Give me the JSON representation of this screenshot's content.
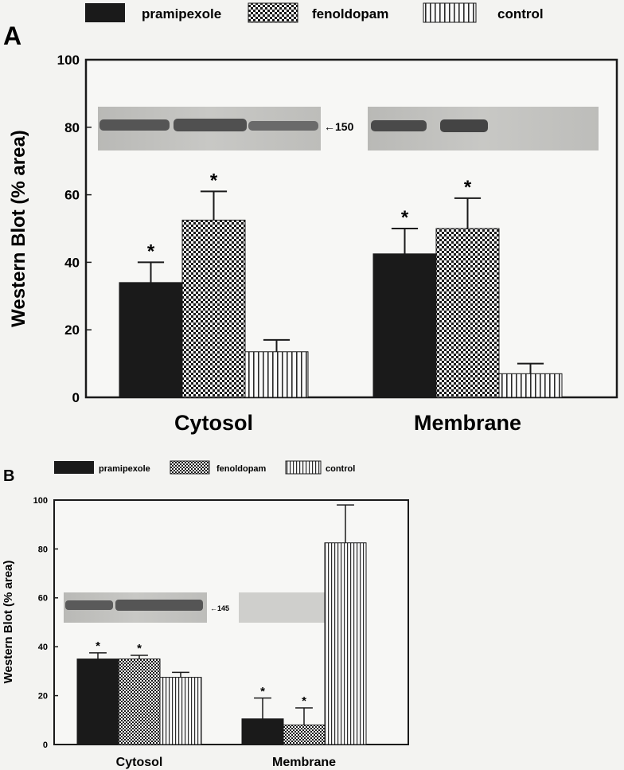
{
  "legend": [
    {
      "label": "pramipexole",
      "pattern": "solid"
    },
    {
      "label": "fenoldopam",
      "pattern": "check"
    },
    {
      "label": "control",
      "pattern": "vstripe"
    }
  ],
  "colors": {
    "bar_dark": "#1a1a1a",
    "background": "#f3f3f1",
    "ink": "#161616"
  },
  "chart_data": [
    {
      "type": "bar",
      "panel_label": "A",
      "ylabel": "Western Blot (% area)",
      "ylim": [
        0,
        100
      ],
      "yticks": [
        0,
        20,
        40,
        60,
        80,
        100
      ],
      "categories": [
        "Cytosol",
        "Membrane"
      ],
      "series": [
        {
          "name": "pramipexole",
          "values": [
            34,
            42.5
          ],
          "errors": [
            6,
            7.5
          ],
          "significant": [
            true,
            true
          ]
        },
        {
          "name": "fenoldopam",
          "values": [
            52.5,
            50
          ],
          "errors": [
            8.5,
            9
          ],
          "significant": [
            true,
            true
          ]
        },
        {
          "name": "control",
          "values": [
            13.5,
            7
          ],
          "errors": [
            3.5,
            3
          ],
          "significant": [
            false,
            false
          ]
        }
      ],
      "blot_label": "←150",
      "significance_marker": "*"
    },
    {
      "type": "bar",
      "panel_label": "B",
      "ylabel": "Western Blot (% area)",
      "ylim": [
        0,
        100
      ],
      "yticks": [
        0,
        20,
        40,
        60,
        80,
        100
      ],
      "categories": [
        "Cytosol",
        "Membrane"
      ],
      "series": [
        {
          "name": "pramipexole",
          "values": [
            35,
            10.5
          ],
          "errors": [
            2.5,
            8.5
          ],
          "significant": [
            true,
            true
          ]
        },
        {
          "name": "fenoldopam",
          "values": [
            35,
            8
          ],
          "errors": [
            1.5,
            7
          ],
          "significant": [
            true,
            true
          ]
        },
        {
          "name": "control",
          "values": [
            27.5,
            82.5
          ],
          "errors": [
            2,
            15.5
          ],
          "significant": [
            false,
            false
          ]
        }
      ],
      "blot_label": "←145",
      "significance_marker": "*"
    }
  ]
}
